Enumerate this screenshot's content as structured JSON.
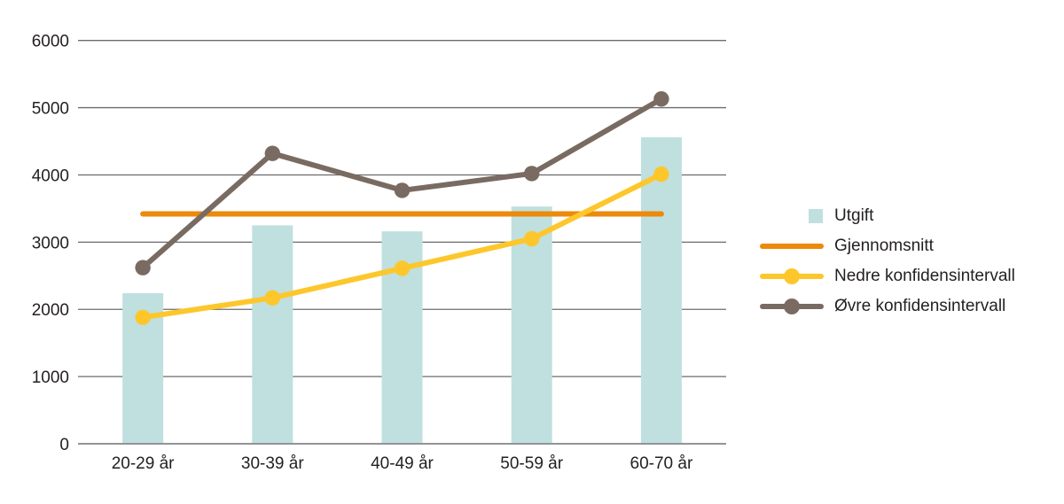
{
  "chart_data": {
    "type": "bar",
    "subtype": "bar-line-combo",
    "categories": [
      "20-29 år",
      "30-39 år",
      "40-49 år",
      "50-59 år",
      "60-70 år"
    ],
    "series": [
      {
        "name": "Utgift",
        "type": "bar",
        "color": "#bfe0df",
        "marker": false,
        "values": [
          2240,
          3250,
          3160,
          3530,
          4560
        ]
      },
      {
        "name": "Gjennomsnitt",
        "type": "line",
        "color": "#ec8a0c",
        "marker": false,
        "values": [
          3420,
          3420,
          3420,
          3420,
          3420
        ]
      },
      {
        "name": "Nedre konfidensintervall",
        "type": "line",
        "color": "#fdc72c",
        "marker": true,
        "values": [
          1880,
          2170,
          2610,
          3050,
          4010
        ]
      },
      {
        "name": "Øvre konfidensintervall",
        "type": "line",
        "color": "#796b62",
        "marker": true,
        "values": [
          2620,
          4320,
          3770,
          4020,
          5130
        ]
      }
    ],
    "title": "",
    "xlabel": "",
    "ylabel": "",
    "ylim": [
      0,
      6000
    ],
    "yticks": [
      0,
      1000,
      2000,
      3000,
      4000,
      5000,
      6000
    ],
    "grid": true,
    "legend_position": "right",
    "colors": {
      "gridline": "#6a6b6d",
      "text": "#231f20",
      "background": "#ffffff"
    }
  }
}
